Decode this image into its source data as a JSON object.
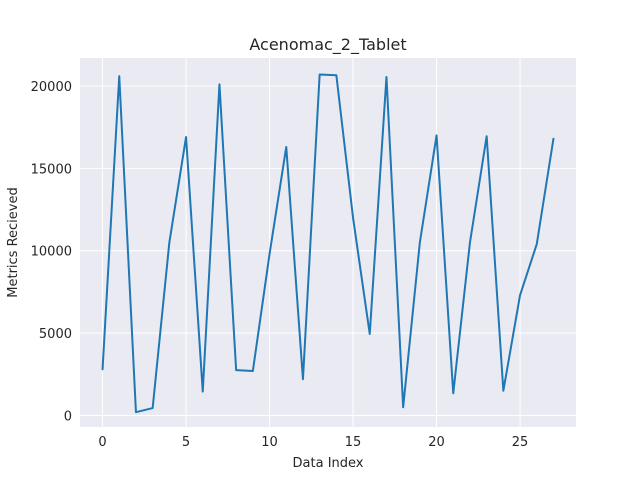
{
  "chart_data": {
    "type": "line",
    "title": "Acenomac_2_Tablet",
    "xlabel": "Data Index",
    "ylabel": "Metrics Recieved",
    "xlim": [
      -1.35,
      28.35
    ],
    "ylim": [
      -700,
      21700
    ],
    "grid": true,
    "x_ticks": [
      0,
      5,
      10,
      15,
      20,
      25
    ],
    "y_ticks": [
      0,
      5000,
      10000,
      15000,
      20000
    ],
    "x_tick_labels": [
      "0",
      "5",
      "10",
      "15",
      "20",
      "25"
    ],
    "y_tick_labels": [
      "0",
      "5000",
      "10000",
      "15000",
      "20000"
    ],
    "series": [
      {
        "color": "#1f77b4",
        "x": [
          0,
          1,
          2,
          3,
          4,
          5,
          6,
          7,
          8,
          9,
          10,
          11,
          12,
          13,
          14,
          15,
          16,
          17,
          18,
          19,
          20,
          21,
          22,
          23,
          24,
          25,
          26,
          27
        ],
        "values": [
          2800,
          20600,
          200,
          450,
          10500,
          16900,
          1450,
          20100,
          2750,
          2700,
          9800,
          16300,
          2200,
          20700,
          20650,
          12000,
          4950,
          20550,
          500,
          10500,
          17000,
          1350,
          10500,
          16950,
          1500,
          7300,
          10400,
          16800
        ]
      }
    ]
  }
}
